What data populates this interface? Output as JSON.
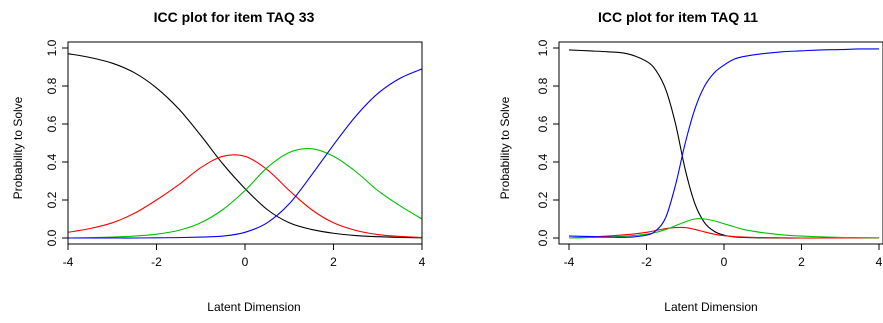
{
  "chart_data": [
    {
      "type": "line",
      "title": "ICC plot for item TAQ  33",
      "xlabel": "Latent Dimension",
      "ylabel": "Probability to Solve",
      "xlim": [
        -4,
        4
      ],
      "ylim": [
        0,
        1
      ],
      "xticks": [
        "-4",
        "-2",
        "0",
        "2",
        "4"
      ],
      "yticks": [
        "0.0",
        "0.2",
        "0.4",
        "0.6",
        "0.8",
        "1.0"
      ],
      "x": [
        -4,
        -3.5,
        -3,
        -2.5,
        -2,
        -1.5,
        -1,
        -0.5,
        0,
        0.5,
        1,
        1.5,
        2,
        2.5,
        3,
        3.5,
        4
      ],
      "series": [
        {
          "color": "#000000",
          "values": [
            0.97,
            0.95,
            0.92,
            0.87,
            0.79,
            0.68,
            0.54,
            0.39,
            0.26,
            0.15,
            0.08,
            0.045,
            0.025,
            0.013,
            0.007,
            0.003,
            0.001
          ]
        },
        {
          "color": "#ff0000",
          "values": [
            0.03,
            0.05,
            0.08,
            0.13,
            0.2,
            0.28,
            0.37,
            0.43,
            0.43,
            0.36,
            0.25,
            0.15,
            0.08,
            0.04,
            0.018,
            0.008,
            0.003
          ]
        },
        {
          "color": "#00c000",
          "values": [
            0.0,
            0.002,
            0.005,
            0.01,
            0.02,
            0.04,
            0.08,
            0.15,
            0.25,
            0.37,
            0.45,
            0.47,
            0.43,
            0.35,
            0.25,
            0.17,
            0.1
          ]
        },
        {
          "color": "#0000ff",
          "values": [
            0.0,
            0.0,
            0.0,
            0.0,
            0.001,
            0.002,
            0.005,
            0.01,
            0.03,
            0.08,
            0.18,
            0.33,
            0.49,
            0.64,
            0.76,
            0.84,
            0.89
          ]
        }
      ]
    },
    {
      "type": "line",
      "title": "ICC plot for item TAQ  11",
      "xlabel": "Latent Dimension",
      "ylabel": "Probability to Solve",
      "xlim": [
        -4,
        4
      ],
      "ylim": [
        0,
        1
      ],
      "xticks": [
        "-4",
        "-2",
        "0",
        "2",
        "4"
      ],
      "yticks": [
        "0.0",
        "0.2",
        "0.4",
        "0.6",
        "0.8",
        "1.0"
      ],
      "x": [
        -4,
        -3.5,
        -3,
        -2.5,
        -2,
        -1.75,
        -1.5,
        -1.25,
        -1,
        -0.75,
        -0.5,
        -0.25,
        0,
        0.25,
        0.5,
        1,
        1.5,
        2,
        2.5,
        3,
        3.5,
        4
      ],
      "series": [
        {
          "color": "#000000",
          "values": [
            0.99,
            0.985,
            0.98,
            0.97,
            0.93,
            0.88,
            0.78,
            0.6,
            0.36,
            0.18,
            0.08,
            0.035,
            0.015,
            0.006,
            0.003,
            0.001,
            0.0,
            0.0,
            0.0,
            0.0,
            0.0,
            0.0
          ]
        },
        {
          "color": "#ff0000",
          "values": [
            0.0,
            0.005,
            0.01,
            0.018,
            0.03,
            0.04,
            0.05,
            0.055,
            0.055,
            0.045,
            0.032,
            0.02,
            0.012,
            0.008,
            0.005,
            0.002,
            0.001,
            0.0,
            0.0,
            0.0,
            0.0,
            0.0
          ]
        },
        {
          "color": "#00c000",
          "values": [
            0.0,
            0.002,
            0.005,
            0.01,
            0.02,
            0.03,
            0.045,
            0.065,
            0.085,
            0.1,
            0.1,
            0.09,
            0.075,
            0.06,
            0.045,
            0.028,
            0.017,
            0.01,
            0.006,
            0.003,
            0.002,
            0.001
          ]
        },
        {
          "color": "#0000ff",
          "values": [
            0.01,
            0.008,
            0.005,
            0.004,
            0.015,
            0.04,
            0.11,
            0.28,
            0.5,
            0.68,
            0.8,
            0.87,
            0.91,
            0.94,
            0.955,
            0.97,
            0.98,
            0.985,
            0.99,
            0.992,
            0.995,
            0.995
          ]
        }
      ]
    }
  ]
}
